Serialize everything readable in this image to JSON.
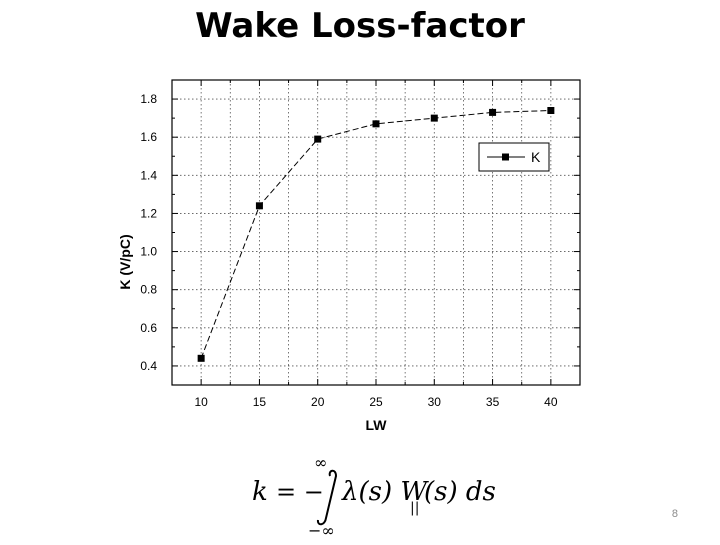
{
  "slide": {
    "title": "Wake Loss-factor",
    "number": "8"
  },
  "chart_data": {
    "type": "line",
    "xlabel": "LW",
    "ylabel": "K (V/pC)",
    "xlim": [
      7.5,
      42.5
    ],
    "ylim": [
      0.3,
      1.9
    ],
    "xticks": [
      10,
      15,
      20,
      25,
      30,
      35,
      40
    ],
    "yticks": [
      0.4,
      0.6,
      0.8,
      1.0,
      1.2,
      1.4,
      1.6,
      1.8
    ],
    "xtick_labels": [
      "10",
      "15",
      "20",
      "25",
      "30",
      "35",
      "40"
    ],
    "ytick_labels": [
      "0.4",
      "0.6",
      "0.8",
      "1.0",
      "1.2",
      "1.4",
      "1.6",
      "1.8"
    ],
    "grid": true,
    "legend_position": "top-right",
    "series": [
      {
        "name": "K",
        "marker": "square",
        "line": "dashed",
        "x": [
          10,
          15,
          20,
          25,
          30,
          35,
          40
        ],
        "y": [
          0.44,
          1.24,
          1.59,
          1.67,
          1.7,
          1.73,
          1.74
        ]
      }
    ]
  },
  "formula": {
    "lhs": "k",
    "equals": "= −",
    "upper_limit": "∞",
    "lower_limit": "−∞",
    "integrand": "λ(s) W",
    "subscript": "||",
    "tail": "(s) ds"
  }
}
